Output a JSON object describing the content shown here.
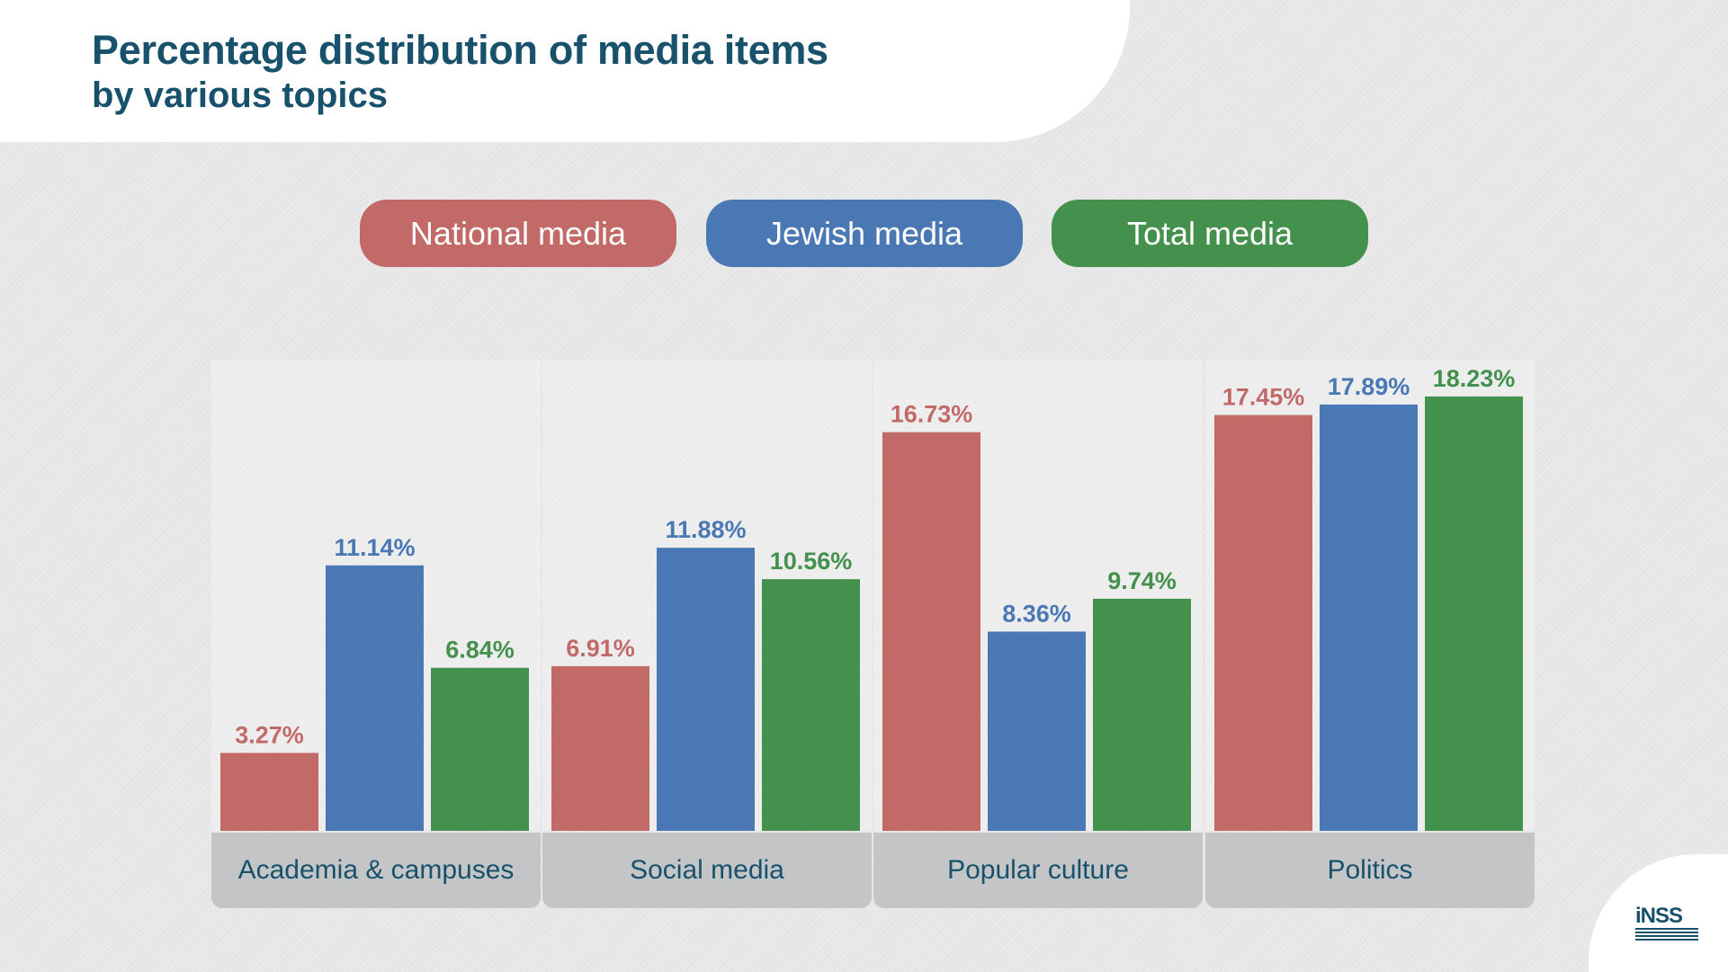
{
  "colors": {
    "national": "#c16a68",
    "jewish": "#4a78b4",
    "total": "#43914c",
    "heading": "#17516b"
  },
  "legend": {
    "national": "National media",
    "jewish": "Jewish media",
    "total": "Total media"
  },
  "logo": {
    "icon": "inss-logo-icon",
    "mark": "iNSS"
  },
  "chart_data": {
    "type": "bar",
    "title": "Percentage distribution of media items",
    "subtitle": "by various topics",
    "categories": [
      "Academia & campuses",
      "Social media",
      "Popular culture",
      "Politics"
    ],
    "series": [
      {
        "name": "National media",
        "values": [
          3.27,
          6.91,
          16.73,
          17.45
        ],
        "labels": [
          "3.27%",
          "6.91%",
          "16.73%",
          "17.45%"
        ]
      },
      {
        "name": "Jewish media",
        "values": [
          11.14,
          11.88,
          8.36,
          17.89
        ],
        "labels": [
          "11.14%",
          "11.88%",
          "8.36%",
          "17.89%"
        ]
      },
      {
        "name": "Total media",
        "values": [
          6.84,
          10.56,
          9.74,
          18.23
        ],
        "labels": [
          "6.84%",
          "10.56%",
          "9.74%",
          "18.23%"
        ]
      }
    ],
    "ylim": [
      0,
      20
    ],
    "grid": false,
    "legend_position": "top-center"
  }
}
